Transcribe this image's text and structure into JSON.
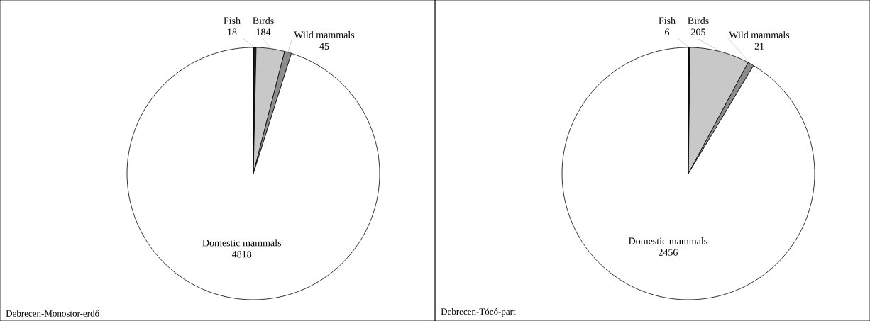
{
  "chart_data": [
    {
      "type": "pie",
      "title": "Debrecen-Monostor-erdő",
      "categories": [
        "Fish",
        "Birds",
        "Wild mammals",
        "Domestic mammals"
      ],
      "values": [
        18,
        184,
        45,
        4818
      ],
      "colors": [
        "#1a1a1a",
        "#c8c8c8",
        "#8c8c8c",
        "#ffffff"
      ],
      "data_labels": true
    },
    {
      "type": "pie",
      "title": "Debrecen-Tócó-part",
      "categories": [
        "Fish",
        "Birds",
        "Wild mammals",
        "Domestic mammals"
      ],
      "values": [
        6,
        205,
        21,
        2456
      ],
      "colors": [
        "#1a1a1a",
        "#c8c8c8",
        "#8c8c8c",
        "#ffffff"
      ],
      "data_labels": true
    }
  ]
}
